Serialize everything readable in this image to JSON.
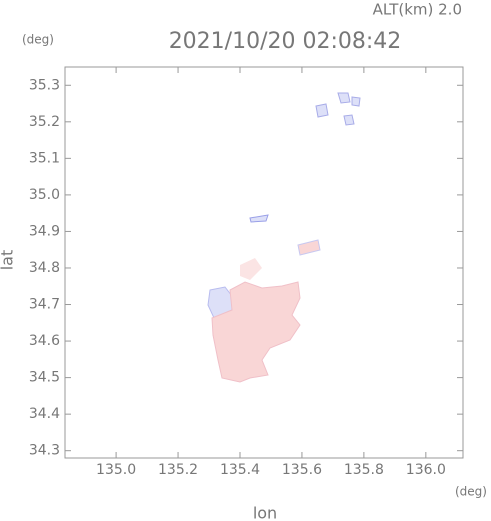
{
  "chart_data": {
    "type": "map",
    "title": "2021/10/20 02:08:42",
    "subtitle": "ALT(km) 2.0",
    "x_label": "lon",
    "y_label": "lat",
    "x_unit": "(deg)",
    "y_unit": "(deg)",
    "xlim": [
      134.835,
      136.12
    ],
    "ylim": [
      34.28,
      35.35
    ],
    "xticks": [
      {
        "value": 135.0,
        "label": "135.0"
      },
      135.2,
      135.4,
      135.6,
      135.8,
      {
        "value": 136.0,
        "label": "136.0"
      }
    ],
    "yticks": [
      35.3,
      35.2,
      35.1,
      {
        "value": 35.0,
        "label": "35.0"
      },
      34.9,
      34.8,
      34.7,
      34.6,
      34.5,
      34.4,
      34.3
    ]
  }
}
